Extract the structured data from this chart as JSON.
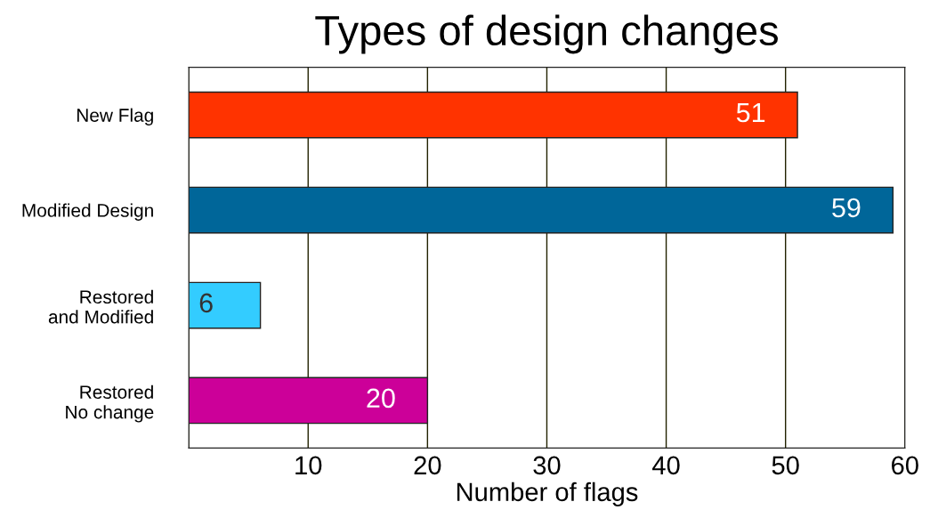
{
  "chart_data": {
    "type": "bar",
    "orientation": "horizontal",
    "title": "Types of design changes",
    "xlabel": "Number of flags",
    "categories": [
      "New Flag",
      "Modified Design",
      "Restored\nand Modified",
      "Restored\nNo change"
    ],
    "values": [
      51,
      59,
      6,
      20
    ],
    "colors": [
      "#ff3300",
      "#006699",
      "#33ccff",
      "#cc0099"
    ],
    "xlim": [
      0,
      60
    ],
    "xticks": [
      {
        "value": 0,
        "label": null
      },
      10,
      20,
      30,
      40,
      50,
      60
    ],
    "grid": "x",
    "data_labels": true
  }
}
